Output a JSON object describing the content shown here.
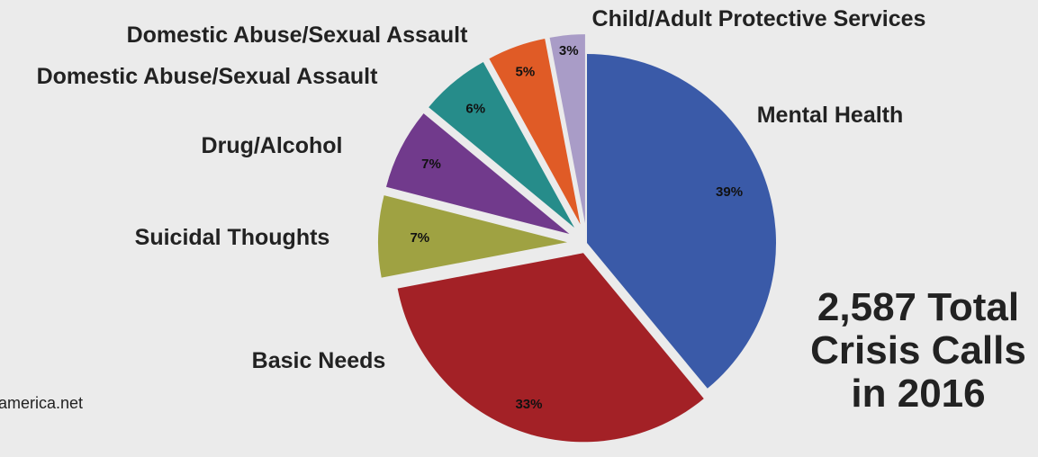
{
  "chart_data": {
    "type": "pie",
    "title": "",
    "exploded": true,
    "slices": [
      {
        "label": "Mental Health",
        "value": 39,
        "value_label": "39%",
        "color": "#3a5aa8"
      },
      {
        "label": "Basic Needs",
        "value": 33,
        "value_label": "33%",
        "color": "#a32126"
      },
      {
        "label": "Suicidal Thoughts",
        "value": 7,
        "value_label": "7%",
        "color": "#9fa242"
      },
      {
        "label": "Drug/Alcohol",
        "value": 7,
        "value_label": "7%",
        "color": "#713a8c"
      },
      {
        "label": "Domestic Abuse/Sexual Assault",
        "value": 6,
        "value_label": "6%",
        "color": "#268c8a"
      },
      {
        "label": "Domestic Abuse/Sexual Assault",
        "value": 5,
        "value_label": "5%",
        "color": "#e05b26"
      },
      {
        "label": "Child/Adult Protective Services",
        "value": 3,
        "value_label": "3%",
        "color": "#a99cc7"
      }
    ]
  },
  "annotation": {
    "lines": [
      "2,587 Total",
      "Crisis Calls",
      "in 2016"
    ]
  },
  "source_text": "america.net"
}
